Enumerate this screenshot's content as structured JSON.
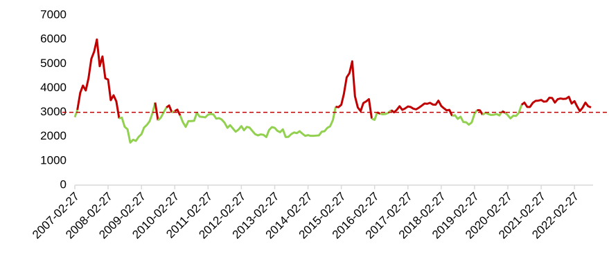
{
  "chart_data": {
    "type": "line",
    "x": [
      "2007-02-27",
      "2007-03-27",
      "2007-04-27",
      "2007-05-27",
      "2007-06-27",
      "2007-07-27",
      "2007-08-27",
      "2007-09-27",
      "2007-10-27",
      "2007-11-27",
      "2007-12-27",
      "2008-01-27",
      "2008-02-27",
      "2008-03-27",
      "2008-04-27",
      "2008-05-27",
      "2008-06-27",
      "2008-07-27",
      "2008-08-27",
      "2008-09-27",
      "2008-10-27",
      "2008-11-27",
      "2008-12-27",
      "2009-01-27",
      "2009-02-27",
      "2009-03-27",
      "2009-04-27",
      "2009-05-27",
      "2009-06-27",
      "2009-07-27",
      "2009-08-27",
      "2009-09-27",
      "2009-10-27",
      "2009-11-27",
      "2009-12-27",
      "2010-01-27",
      "2010-02-27",
      "2010-03-27",
      "2010-04-27",
      "2010-05-27",
      "2010-06-27",
      "2010-07-27",
      "2010-08-27",
      "2010-09-27",
      "2010-10-27",
      "2010-11-27",
      "2010-12-27",
      "2011-01-27",
      "2011-02-27",
      "2011-03-27",
      "2011-04-27",
      "2011-05-27",
      "2011-06-27",
      "2011-07-27",
      "2011-08-27",
      "2011-09-27",
      "2011-10-27",
      "2011-11-27",
      "2011-12-27",
      "2012-01-27",
      "2012-02-27",
      "2012-03-27",
      "2012-04-27",
      "2012-05-27",
      "2012-06-27",
      "2012-07-27",
      "2012-08-27",
      "2012-09-27",
      "2012-10-27",
      "2012-11-27",
      "2012-12-27",
      "2013-01-27",
      "2013-02-27",
      "2013-03-27",
      "2013-04-27",
      "2013-05-27",
      "2013-06-27",
      "2013-07-27",
      "2013-08-27",
      "2013-09-27",
      "2013-10-27",
      "2013-11-27",
      "2013-12-27",
      "2014-01-27",
      "2014-02-27",
      "2014-03-27",
      "2014-04-27",
      "2014-05-27",
      "2014-06-27",
      "2014-07-27",
      "2014-08-27",
      "2014-09-27",
      "2014-10-27",
      "2014-11-27",
      "2014-12-27",
      "2015-01-27",
      "2015-02-27",
      "2015-03-27",
      "2015-04-27",
      "2015-05-27",
      "2015-06-27",
      "2015-07-27",
      "2015-08-27",
      "2015-09-27",
      "2015-10-27",
      "2015-11-27",
      "2015-12-27",
      "2016-01-27",
      "2016-02-27",
      "2016-03-27",
      "2016-04-27",
      "2016-05-27",
      "2016-06-27",
      "2016-07-27",
      "2016-08-27",
      "2016-09-27",
      "2016-10-27",
      "2016-11-27",
      "2016-12-27",
      "2017-01-27",
      "2017-02-27",
      "2017-03-27",
      "2017-04-27",
      "2017-05-27",
      "2017-06-27",
      "2017-07-27",
      "2017-08-27",
      "2017-09-27",
      "2017-10-27",
      "2017-11-27",
      "2017-12-27",
      "2018-01-27",
      "2018-02-27",
      "2018-03-27",
      "2018-04-27",
      "2018-05-27",
      "2018-06-27",
      "2018-07-27",
      "2018-08-27",
      "2018-09-27",
      "2018-10-27",
      "2018-11-27",
      "2018-12-27",
      "2019-01-27",
      "2019-02-27",
      "2019-03-27",
      "2019-04-27",
      "2019-05-27",
      "2019-06-27",
      "2019-07-27",
      "2019-08-27",
      "2019-09-27",
      "2019-10-27",
      "2019-11-27",
      "2019-12-27",
      "2020-01-27",
      "2020-02-27",
      "2020-03-27",
      "2020-04-27",
      "2020-05-27",
      "2020-06-27",
      "2020-07-27",
      "2020-08-27",
      "2020-09-27",
      "2020-10-27",
      "2020-11-27",
      "2020-12-27",
      "2021-01-27",
      "2021-02-27",
      "2021-03-27",
      "2021-04-27",
      "2021-05-27",
      "2021-06-27",
      "2021-07-27",
      "2021-08-27",
      "2021-09-27",
      "2021-10-27",
      "2021-11-27",
      "2021-12-27",
      "2022-01-27",
      "2022-02-27",
      "2022-03-27",
      "2022-04-27",
      "2022-05-27",
      "2022-06-27",
      "2022-07-27",
      "2022-08-27"
    ],
    "series": [
      {
        "values": [
          2800,
          3100,
          3800,
          4100,
          3900,
          4400,
          5200,
          5500,
          6000,
          4900,
          5300,
          4400,
          4350,
          3500,
          3700,
          3450,
          2750,
          2780,
          2400,
          2300,
          1750,
          1870,
          1820,
          1990,
          2100,
          2370,
          2480,
          2630,
          2960,
          3400,
          2670,
          2780,
          2990,
          3200,
          3280,
          2990,
          3050,
          3110,
          2870,
          2590,
          2400,
          2640,
          2640,
          2650,
          2980,
          2820,
          2810,
          2790,
          2900,
          2930,
          2910,
          2740,
          2760,
          2700,
          2570,
          2360,
          2470,
          2330,
          2200,
          2290,
          2430,
          2260,
          2400,
          2370,
          2230,
          2100,
          2050,
          2090,
          2070,
          1980,
          2270,
          2390,
          2360,
          2240,
          2180,
          2300,
          1980,
          1990,
          2100,
          2170,
          2140,
          2220,
          2120,
          2030,
          2060,
          2030,
          2030,
          2040,
          2050,
          2200,
          2220,
          2360,
          2420,
          2680,
          3230,
          3210,
          3310,
          3750,
          4440,
          4610,
          5100,
          3660,
          3200,
          3050,
          3380,
          3450,
          3540,
          2740,
          2690,
          3000,
          2940,
          2920,
          2930,
          2980,
          3090,
          3000,
          3100,
          3250,
          3100,
          3160,
          3240,
          3220,
          3150,
          3120,
          3190,
          3270,
          3360,
          3350,
          3390,
          3320,
          3310,
          3480,
          3260,
          3170,
          3080,
          3100,
          2850,
          2880,
          2730,
          2820,
          2600,
          2590,
          2490,
          2580,
          2940,
          3090,
          3080,
          2900,
          2980,
          2930,
          2890,
          2900,
          2930,
          2870,
          3050,
          2980,
          2880,
          2750,
          2860,
          2850,
          2980,
          3310,
          3400,
          3220,
          3220,
          3390,
          3470,
          3480,
          3510,
          3440,
          3450,
          3600,
          3590,
          3400,
          3540,
          3570,
          3550,
          3560,
          3640,
          3360,
          3460,
          3250,
          3050,
          3190,
          3400,
          3250,
          3200
        ]
      }
    ],
    "threshold": 3000,
    "above_color": "#c00000",
    "below_color": "#92d050",
    "threshold_color": "#c00000",
    "xlim": [
      "2007-02-27",
      "2022-08-27"
    ],
    "xticks": [
      "2007-02-27",
      "2008-02-27",
      "2009-02-27",
      "2010-02-27",
      "2011-02-27",
      "2012-02-27",
      "2013-02-27",
      "2014-02-27",
      "2015-02-27",
      "2016-02-27",
      "2017-02-27",
      "2018-02-27",
      "2019-02-27",
      "2020-02-27",
      "2021-02-27",
      "2022-02-27"
    ],
    "ylim": [
      0,
      7000
    ],
    "yticks": [
      0,
      1000,
      2000,
      3000,
      4000,
      5000,
      6000,
      7000
    ]
  }
}
